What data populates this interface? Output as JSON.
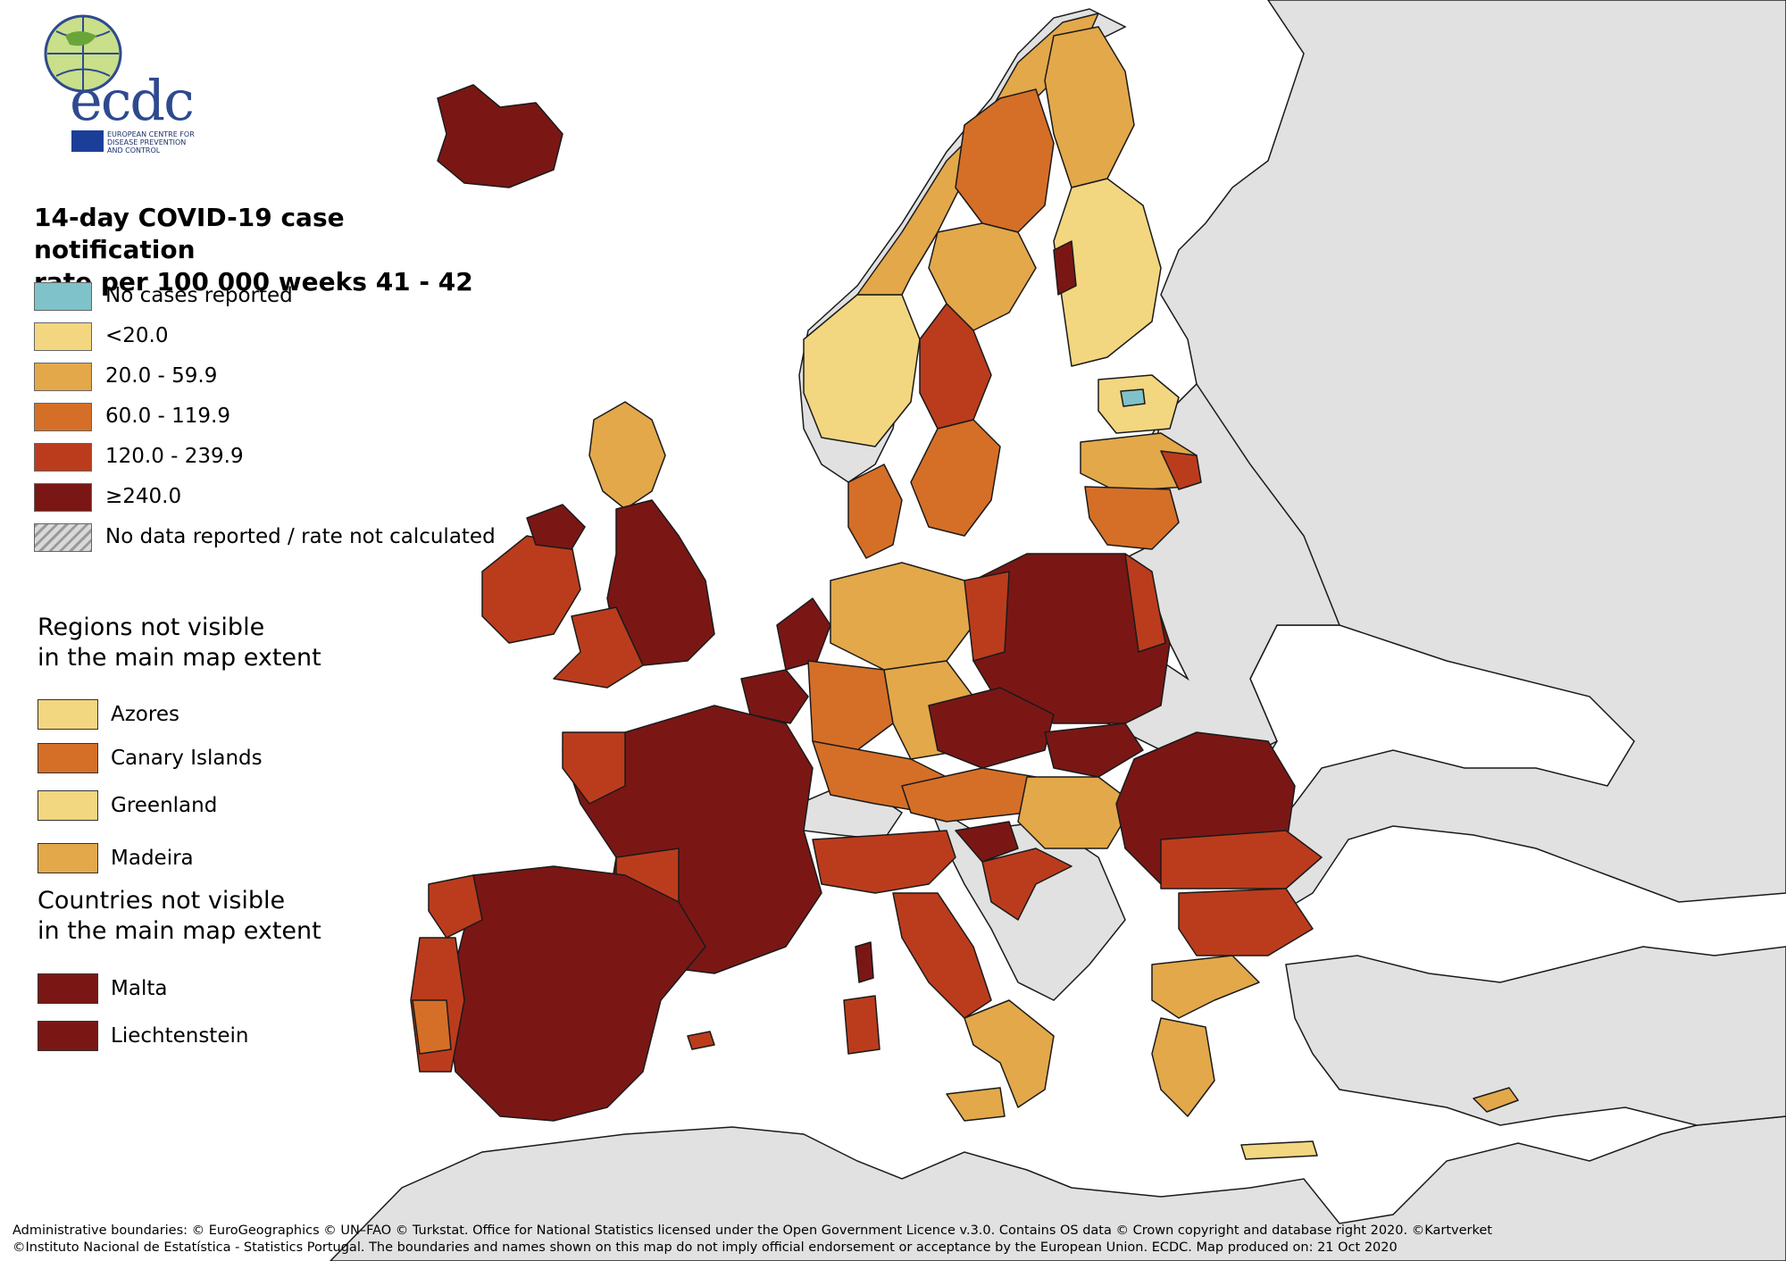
{
  "logo": {
    "text": "ecdc",
    "subtitle": [
      "EUROPEAN CENTRE FOR",
      "DISEASE PREVENTION",
      "AND CONTROL"
    ]
  },
  "title": [
    "14-day COVID-19 case notification",
    "rate per 100 000 weeks 41 - 42"
  ],
  "legend": [
    {
      "label": "No cases reported",
      "color": "#80c2c9"
    },
    {
      "label": "<20.0",
      "color": "#f3d680"
    },
    {
      "label": "20.0 - 59.9",
      "color": "#e3a84a"
    },
    {
      "label": "60.0 - 119.9",
      "color": "#d56f27"
    },
    {
      "label": "120.0 - 239.9",
      "color": "#bb3c1d"
    },
    {
      "label": "≥240.0",
      "color": "#7a1715"
    },
    {
      "label": "No data reported / rate not calculated",
      "color": "hatch"
    }
  ],
  "regions_not_visible": {
    "title": [
      "Regions not visible",
      "in the main map extent"
    ],
    "items": [
      {
        "label": "Azores",
        "color": "#f3d680"
      },
      {
        "label": "Canary Islands",
        "color": "#d56f27"
      },
      {
        "label": "Greenland",
        "color": "#f3d680"
      },
      {
        "label": "Madeira",
        "color": "#e3a84a"
      }
    ]
  },
  "countries_not_visible": {
    "title": [
      "Countries not visible",
      "in the main map extent"
    ],
    "items": [
      {
        "label": "Malta",
        "color": "#7a1715"
      },
      {
        "label": "Liechtenstein",
        "color": "#7a1715"
      }
    ]
  },
  "footer": [
    "Administrative boundaries: © EuroGeographics © UN–FAO © Turkstat. Office for National Statistics licensed under the Open Government Licence v.3.0. Contains OS data © Crown copyright and database right 2020. ©Kartverket",
    "©Instituto Nacional de Estatística - Statistics Portugal. The boundaries and names shown on this map do not imply official endorsement or acceptance by the European Union. ECDC. Map produced on: 21 Oct 2020"
  ],
  "colors": {
    "sea": "#ffffff",
    "non_eu": "#e1e1e1",
    "border": "#1a1a1a"
  }
}
